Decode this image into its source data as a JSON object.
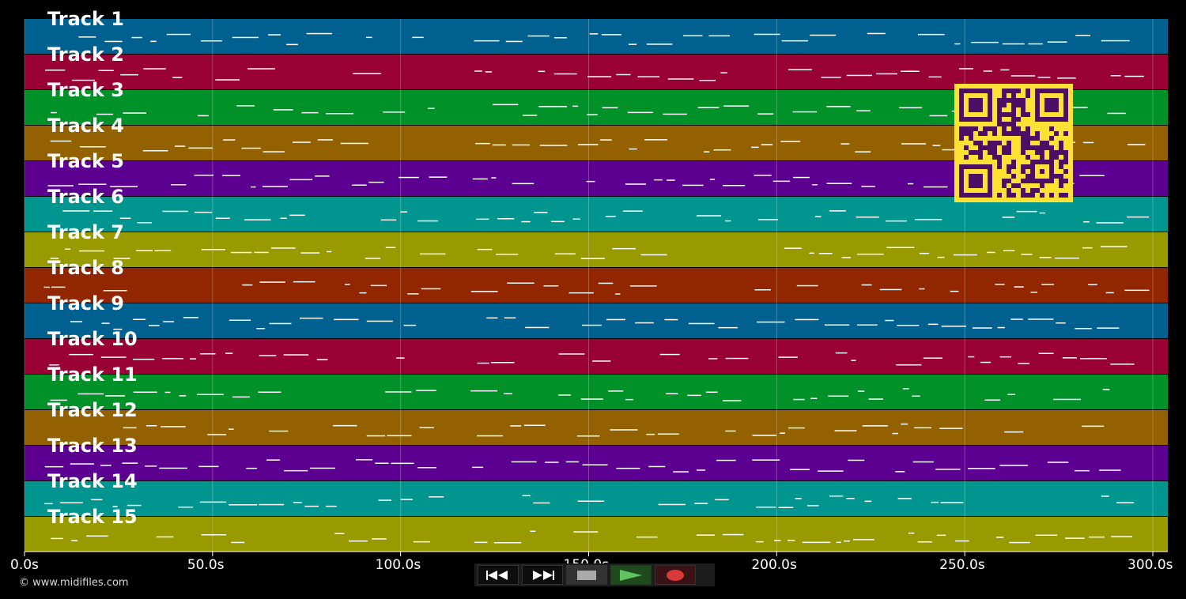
{
  "tracks": [
    {
      "label": "Track 1",
      "color": "#00608f"
    },
    {
      "label": "Track 2",
      "color": "#990033"
    },
    {
      "label": "Track 3",
      "color": "#009129"
    },
    {
      "label": "Track 4",
      "color": "#946100"
    },
    {
      "label": "Track 5",
      "color": "#5c0091"
    },
    {
      "label": "Track 6",
      "color": "#00968f"
    },
    {
      "label": "Track 7",
      "color": "#999900"
    },
    {
      "label": "Track 8",
      "color": "#912600"
    },
    {
      "label": "Track 9",
      "color": "#00608f"
    },
    {
      "label": "Track 10",
      "color": "#990033"
    },
    {
      "label": "Track 11",
      "color": "#009129"
    },
    {
      "label": "Track 12",
      "color": "#946100"
    },
    {
      "label": "Track 13",
      "color": "#5c0091"
    },
    {
      "label": "Track 14",
      "color": "#00968f"
    },
    {
      "label": "Track 15",
      "color": "#999900"
    }
  ],
  "timeline": {
    "start_seconds": 0,
    "end_seconds": 300,
    "ticks": [
      {
        "seconds": 0,
        "label": "0.0s"
      },
      {
        "seconds": 50,
        "label": "50.0s"
      },
      {
        "seconds": 100,
        "label": "100.0s"
      },
      {
        "seconds": 150,
        "label": "150.0s"
      },
      {
        "seconds": 200,
        "label": "200.0s"
      },
      {
        "seconds": 250,
        "label": "250.0s"
      },
      {
        "seconds": 300,
        "label": "300.0s"
      }
    ]
  },
  "transport": {
    "buttons": [
      {
        "name": "rewind-button",
        "icon": "rewind-icon"
      },
      {
        "name": "fast-forward-button",
        "icon": "fast-forward-icon"
      },
      {
        "name": "stop-button",
        "icon": "stop-icon"
      },
      {
        "name": "play-button",
        "icon": "play-icon",
        "color": "#5fc35f"
      },
      {
        "name": "record-button",
        "icon": "record-icon",
        "color": "#d83a3a"
      }
    ]
  },
  "copyright": "© www.midifiles.com",
  "qr_code": {
    "icon": "qr-code-icon",
    "background": "#ffe133",
    "foreground": "#4d0f66"
  }
}
